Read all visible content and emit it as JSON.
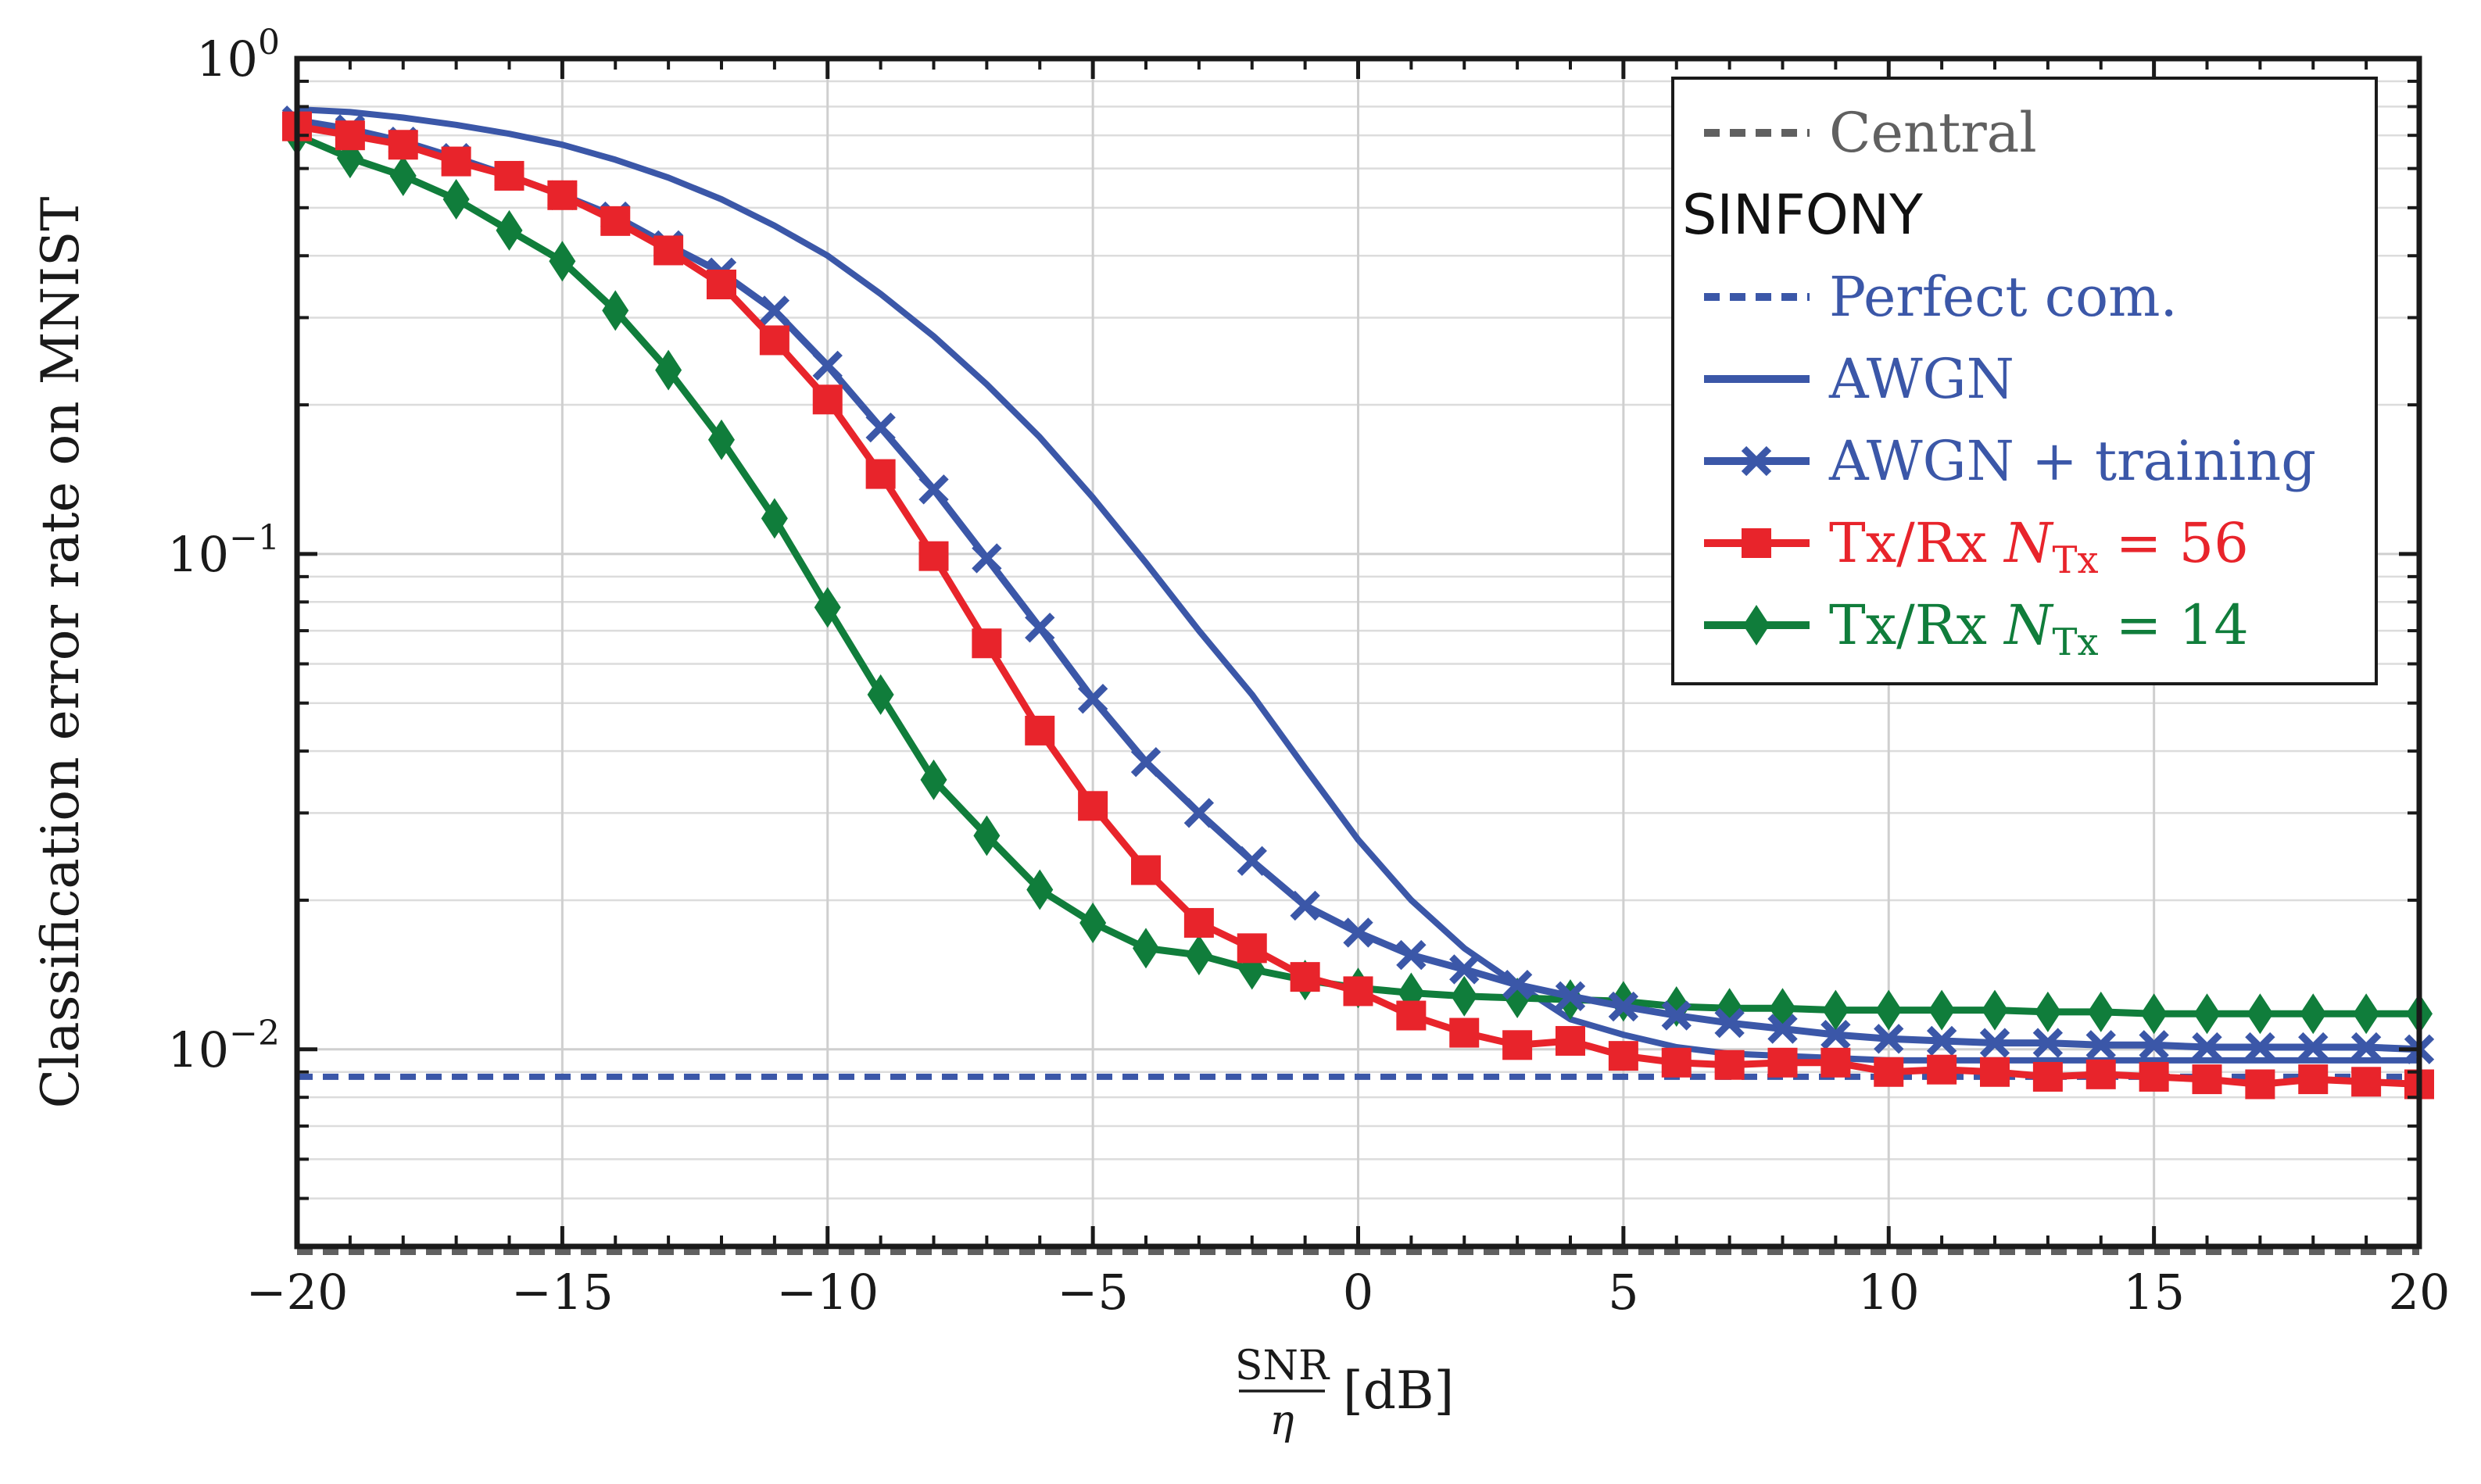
{
  "chart_data": {
    "type": "line",
    "xlabel_fraction": {
      "numerator": "SNR",
      "denominator": "η"
    },
    "xlabel_unit": "[dB]",
    "ylabel": "Classification error rate on MNIST",
    "xlim": [
      -20,
      20
    ],
    "ylim": [
      0.004,
      1
    ],
    "yscale": "log",
    "grid": true,
    "legend_position": "top-right",
    "x_ticks": [
      {
        "value": -20,
        "label": "−20"
      },
      {
        "value": -15,
        "label": "−15"
      },
      {
        "value": -10,
        "label": "−10"
      },
      {
        "value": -5,
        "label": "−5"
      },
      {
        "value": 0,
        "label": "0"
      },
      {
        "value": 5,
        "label": "5"
      },
      {
        "value": 10,
        "label": "10"
      },
      {
        "value": 15,
        "label": "15"
      },
      {
        "value": 20,
        "label": "20"
      }
    ],
    "y_ticks": [
      {
        "value": 1,
        "base": "10",
        "exp": "0"
      },
      {
        "value": 0.1,
        "base": "10",
        "exp": "−1"
      },
      {
        "value": 0.01,
        "base": "10",
        "exp": "−2"
      }
    ],
    "legend_title": "SINFONY",
    "series": [
      {
        "name": "Central",
        "legend": {
          "text": "Central"
        },
        "color": "#606060",
        "style": "dashed",
        "marker": "none",
        "x": [
          -20,
          20
        ],
        "y": [
          0.0039,
          0.0039
        ]
      },
      {
        "name": "Perfect com.",
        "legend": {
          "text": "Perfect com."
        },
        "color": "#3b57a8",
        "style": "dashed",
        "marker": "none",
        "x": [
          -20,
          20
        ],
        "y": [
          0.0088,
          0.0088
        ]
      },
      {
        "name": "AWGN",
        "legend": {
          "text": "AWGN"
        },
        "color": "#3b57a8",
        "style": "solid",
        "marker": "none",
        "x": [
          -20,
          -19,
          -18,
          -17,
          -16,
          -15,
          -14,
          -13,
          -12,
          -11,
          -10,
          -9,
          -8,
          -7,
          -6,
          -5,
          -4,
          -3,
          -2,
          -1,
          0,
          1,
          2,
          3,
          4,
          5,
          6,
          7,
          8,
          9,
          10,
          11,
          12,
          13,
          14,
          15,
          16,
          17,
          18,
          19,
          20
        ],
        "y": [
          0.79,
          0.78,
          0.76,
          0.735,
          0.705,
          0.67,
          0.625,
          0.575,
          0.52,
          0.46,
          0.4,
          0.335,
          0.275,
          0.22,
          0.172,
          0.13,
          0.096,
          0.07,
          0.052,
          0.037,
          0.0265,
          0.02,
          0.016,
          0.0135,
          0.0115,
          0.0107,
          0.0101,
          0.0098,
          0.0097,
          0.0096,
          0.0095,
          0.0095,
          0.0095,
          0.0095,
          0.0095,
          0.0095,
          0.0095,
          0.0095,
          0.0095,
          0.0095,
          0.0095
        ]
      },
      {
        "name": "AWGN + training",
        "legend": {
          "text": "AWGN + training"
        },
        "color": "#3b57a8",
        "style": "solid",
        "marker": "x",
        "x": [
          -20,
          -19,
          -18,
          -17,
          -16,
          -15,
          -14,
          -13,
          -12,
          -11,
          -10,
          -9,
          -8,
          -7,
          -6,
          -5,
          -4,
          -3,
          -2,
          -1,
          0,
          1,
          2,
          3,
          4,
          5,
          6,
          7,
          8,
          9,
          10,
          11,
          12,
          13,
          14,
          15,
          16,
          17,
          18,
          19,
          20
        ],
        "y": [
          0.75,
          0.72,
          0.68,
          0.63,
          0.58,
          0.53,
          0.48,
          0.42,
          0.37,
          0.31,
          0.24,
          0.18,
          0.135,
          0.098,
          0.071,
          0.051,
          0.038,
          0.03,
          0.024,
          0.0195,
          0.0172,
          0.0155,
          0.0145,
          0.0135,
          0.0128,
          0.0122,
          0.0117,
          0.0113,
          0.011,
          0.0107,
          0.0105,
          0.0104,
          0.0103,
          0.0103,
          0.0102,
          0.0102,
          0.0101,
          0.0101,
          0.0101,
          0.0101,
          0.01
        ]
      },
      {
        "name": "Tx/Rx N_Tx = 56",
        "legend": {
          "prefix": "Tx/Rx ",
          "var": "N",
          "sub": "Tx",
          "suffix": " = 56"
        },
        "color": "#e8242b",
        "style": "solid",
        "marker": "square",
        "x": [
          -20,
          -19,
          -18,
          -17,
          -16,
          -15,
          -14,
          -13,
          -12,
          -11,
          -10,
          -9,
          -8,
          -7,
          -6,
          -5,
          -4,
          -3,
          -2,
          -1,
          0,
          1,
          2,
          3,
          4,
          5,
          6,
          7,
          8,
          9,
          10,
          11,
          12,
          13,
          14,
          15,
          16,
          17,
          18,
          19,
          20
        ],
        "y": [
          0.73,
          0.7,
          0.67,
          0.62,
          0.58,
          0.53,
          0.47,
          0.41,
          0.35,
          0.27,
          0.205,
          0.145,
          0.099,
          0.066,
          0.044,
          0.031,
          0.023,
          0.018,
          0.016,
          0.014,
          0.0131,
          0.0117,
          0.0108,
          0.0102,
          0.0104,
          0.0097,
          0.0094,
          0.0093,
          0.0094,
          0.0094,
          0.009,
          0.0091,
          0.009,
          0.0088,
          0.0089,
          0.0088,
          0.0087,
          0.0085,
          0.0087,
          0.0086,
          0.0085
        ]
      },
      {
        "name": "Tx/Rx N_Tx = 14",
        "legend": {
          "prefix": "Tx/Rx ",
          "var": "N",
          "sub": "Tx",
          "suffix": " = 14"
        },
        "color": "#107d3b",
        "style": "solid",
        "marker": "diamond",
        "x": [
          -20,
          -19,
          -18,
          -17,
          -16,
          -15,
          -14,
          -13,
          -12,
          -11,
          -10,
          -9,
          -8,
          -7,
          -6,
          -5,
          -4,
          -3,
          -2,
          -1,
          0,
          1,
          2,
          3,
          4,
          5,
          6,
          7,
          8,
          9,
          10,
          11,
          12,
          13,
          14,
          15,
          16,
          17,
          18,
          19,
          20
        ],
        "y": [
          0.7,
          0.63,
          0.58,
          0.52,
          0.45,
          0.39,
          0.31,
          0.235,
          0.17,
          0.118,
          0.078,
          0.052,
          0.035,
          0.027,
          0.021,
          0.018,
          0.016,
          0.0155,
          0.0145,
          0.0138,
          0.0133,
          0.013,
          0.0128,
          0.0127,
          0.0126,
          0.0125,
          0.0122,
          0.0121,
          0.0121,
          0.012,
          0.012,
          0.012,
          0.012,
          0.0119,
          0.0119,
          0.0118,
          0.0118,
          0.0118,
          0.0118,
          0.0118,
          0.0118
        ]
      }
    ]
  }
}
